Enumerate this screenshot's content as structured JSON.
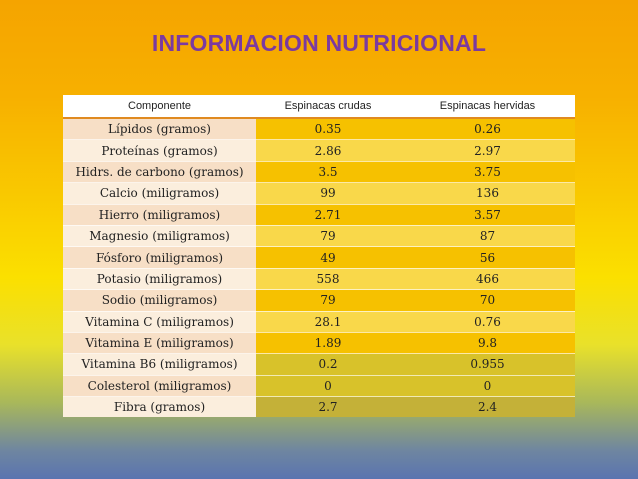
{
  "title": "INFORMACION NUTRICIONAL",
  "table": {
    "headers": [
      "Componente",
      "Espinacas crudas",
      "Espinacas hervidas"
    ],
    "rows": [
      [
        "Lípidos (gramos)",
        "0.35",
        "0.26"
      ],
      [
        "Proteínas (gramos)",
        "2.86",
        "2.97"
      ],
      [
        "Hidrs. de carbono (gramos)",
        "3.5",
        "3.75"
      ],
      [
        "Calcio (miligramos)",
        "99",
        "136"
      ],
      [
        "Hierro (miligramos)",
        "2.71",
        "3.57"
      ],
      [
        "Magnesio (miligramos)",
        "79",
        "87"
      ],
      [
        "Fósforo (miligramos)",
        "49",
        "56"
      ],
      [
        "Potasio (miligramos)",
        "558",
        "466"
      ],
      [
        "Sodio (miligramos)",
        "79",
        "70"
      ],
      [
        "Vitamina C (miligramos)",
        "28.1",
        "0.76"
      ],
      [
        "Vitamina E (miligramos)",
        "1.89",
        "9.8"
      ],
      [
        "Vitamina B6 (miligramos)",
        "0.2",
        "0.955"
      ],
      [
        "Colesterol (miligramos)",
        "0",
        "0"
      ],
      [
        "Fibra (gramos)",
        "2.7",
        "2.4"
      ]
    ]
  }
}
